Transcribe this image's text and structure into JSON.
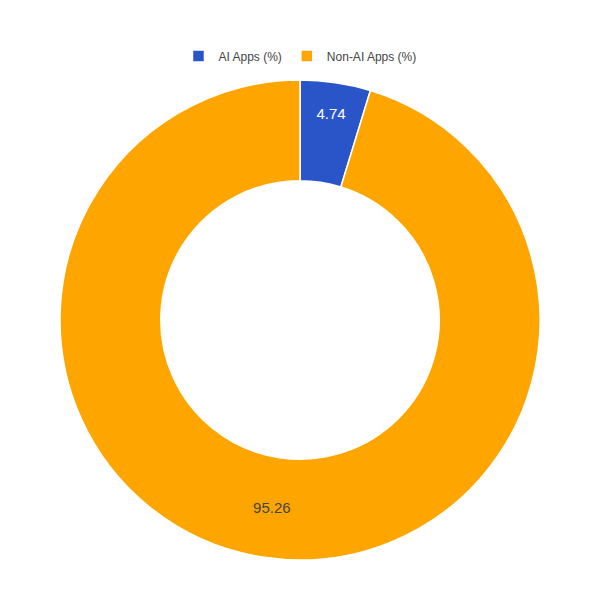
{
  "chart_data": {
    "type": "donut",
    "categories": [
      "AI Apps (%)",
      "Non-AI Apps (%)"
    ],
    "values": [
      4.74,
      95.26
    ],
    "colors": [
      "#2955c8",
      "#FFA500"
    ],
    "data_labels": true,
    "legend": "top"
  }
}
